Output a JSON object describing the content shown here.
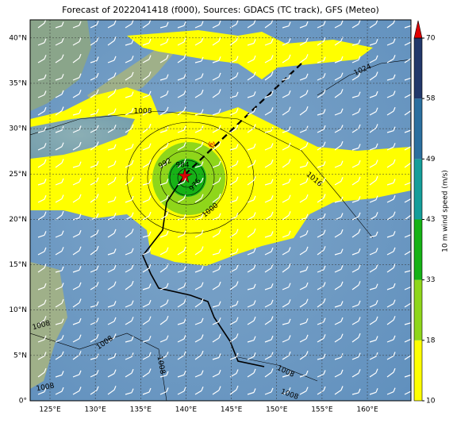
{
  "map": {
    "title": "Forecast of 2022041418 (f000), Sources: GDACS (TC track), GFS (Meteo)",
    "lon_ticks": [
      {
        "value": 125,
        "label": "125°E"
      },
      {
        "value": 130,
        "label": "130°E"
      },
      {
        "value": 135,
        "label": "135°E"
      },
      {
        "value": 140,
        "label": "140°E"
      },
      {
        "value": 145,
        "label": "145°E"
      },
      {
        "value": 150,
        "label": "150°E"
      },
      {
        "value": 155,
        "label": "155°E"
      },
      {
        "value": 160,
        "label": "160°E"
      }
    ],
    "lat_ticks": [
      {
        "value": 0,
        "label": "0°"
      },
      {
        "value": 5,
        "label": "5°N"
      },
      {
        "value": 10,
        "label": "10°N"
      },
      {
        "value": 15,
        "label": "15°N"
      },
      {
        "value": 20,
        "label": "20°N"
      },
      {
        "value": 25,
        "label": "25°N"
      },
      {
        "value": 30,
        "label": "30°N"
      },
      {
        "value": 35,
        "label": "35°N"
      },
      {
        "value": 40,
        "label": "40°N"
      }
    ],
    "colorbar": {
      "label": "10 m wind speed (m/s)",
      "ticks": [
        10,
        18,
        33,
        43,
        49,
        58,
        70
      ],
      "colors": [
        "#ffff00",
        "#8fd61a",
        "#16b216",
        "#159e9a",
        "#2b6f9f",
        "#22386a"
      ],
      "extend_color": "#e00000"
    },
    "isobar_labels": [
      "1008",
      "1024",
      "1016",
      "1000",
      "992",
      "984",
      "976",
      "1008",
      "1008",
      "1008",
      "1008",
      "1008",
      "1008"
    ]
  }
}
